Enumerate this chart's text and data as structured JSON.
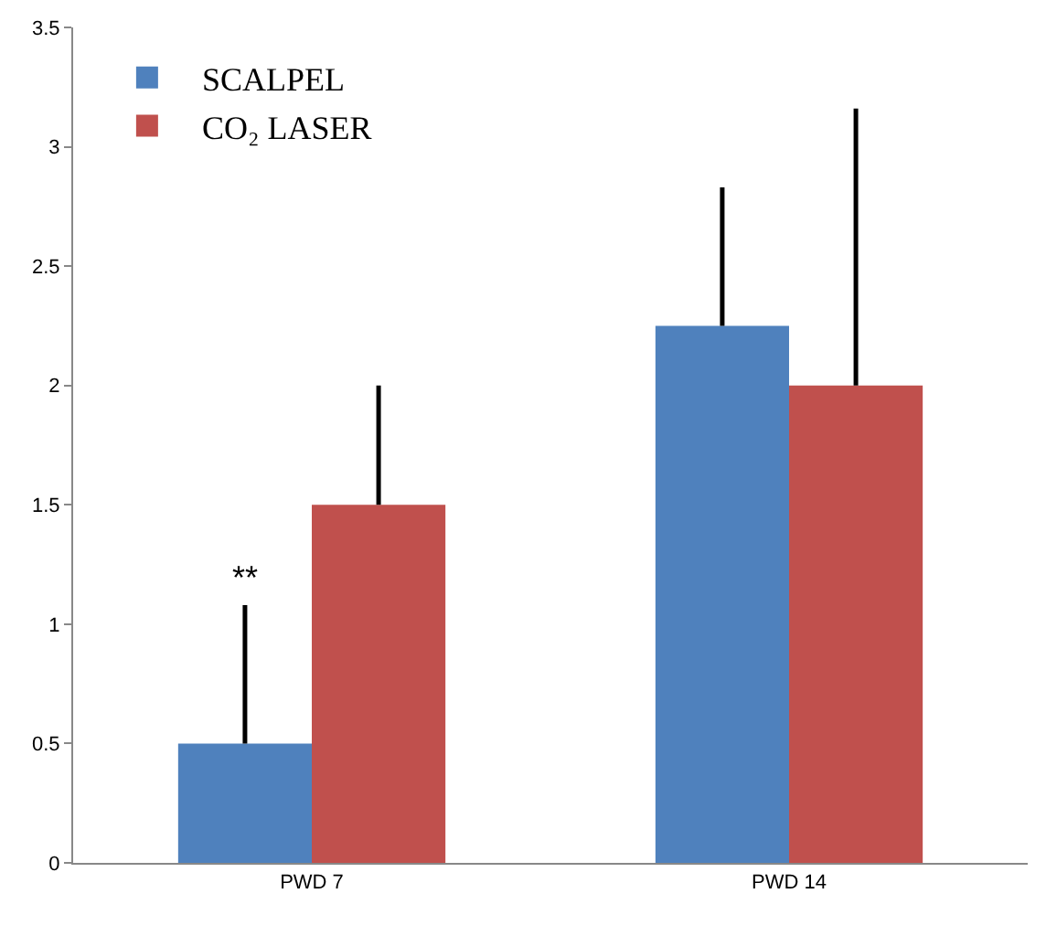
{
  "chart_data": {
    "type": "bar",
    "categories": [
      "PWD 7",
      "PWD 14"
    ],
    "series": [
      {
        "name": "SCALPEL",
        "color": "#4f81bd",
        "values": [
          0.5,
          2.25
        ],
        "errors": [
          [
            0.5,
            1.08
          ],
          [
            2.25,
            2.83
          ]
        ]
      },
      {
        "name": "CO₂ LASER",
        "color": "#c0504d",
        "values": [
          1.5,
          2.0
        ],
        "errors": [
          [
            1.5,
            2.0
          ],
          [
            2.0,
            3.16
          ]
        ]
      }
    ],
    "ylim": [
      0,
      3.5
    ],
    "yticks": [
      0,
      0.5,
      1,
      1.5,
      2,
      2.5,
      3,
      3.5
    ],
    "grid": false,
    "legend": "top left",
    "annotations": [
      {
        "text": "**",
        "x": "PWD 7",
        "y": 1.1
      }
    ]
  }
}
